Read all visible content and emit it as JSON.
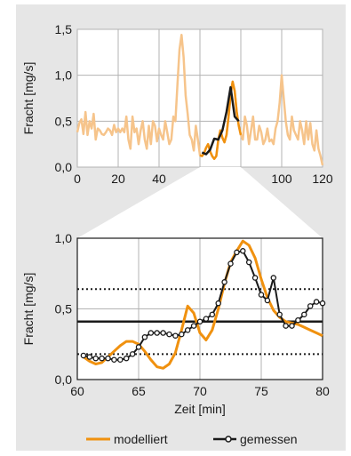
{
  "colors": {
    "panel_bg": "#e6e6e6",
    "plot_bg": "#ffffff",
    "grid": "#b3b3b3",
    "modelled": "#f0910f",
    "modelled_faded": "#f6c48b",
    "measured": "#1a1a1a",
    "highlight_window": "#ffffff"
  },
  "legend": {
    "modelled_label": "modelliert",
    "measured_label": "gemessen"
  },
  "chart_data": [
    {
      "id": "overview",
      "type": "line",
      "ylabel": "Fracht [mg/s]",
      "xlabel": "",
      "xlim": [
        0,
        120
      ],
      "ylim": [
        0,
        1.5
      ],
      "xticks": [
        0,
        20,
        40,
        60,
        80,
        100,
        120
      ],
      "xtick_labels": [
        "0",
        "20",
        "40",
        "60",
        "80",
        "100",
        "120"
      ],
      "yticks": [
        0,
        0.5,
        1.0,
        1.5
      ],
      "ytick_labels": [
        "0,0",
        "0,5",
        "1,0",
        "1,5"
      ],
      "highlight_range": [
        60,
        80
      ],
      "grid": true,
      "series": [
        {
          "name": "modelliert",
          "x": [
            0,
            1,
            2,
            3,
            4,
            5,
            6,
            7,
            8,
            9,
            10,
            11,
            12,
            13,
            14,
            15,
            16,
            17,
            18,
            19,
            20,
            21,
            22,
            23,
            24,
            25,
            26,
            27,
            28,
            29,
            30,
            31,
            32,
            33,
            34,
            35,
            36,
            37,
            38,
            39,
            40,
            41,
            42,
            43,
            44,
            45,
            46,
            47,
            48,
            49,
            50,
            51,
            52,
            53,
            54,
            55,
            56,
            57,
            58,
            59,
            60,
            61,
            62,
            63,
            64,
            65,
            66,
            67,
            68,
            69,
            70,
            71,
            72,
            73,
            74,
            75,
            76,
            77,
            78,
            79,
            80,
            81,
            82,
            83,
            84,
            85,
            86,
            87,
            88,
            89,
            90,
            91,
            92,
            93,
            94,
            95,
            96,
            97,
            98,
            99,
            100,
            101,
            102,
            103,
            104,
            105,
            106,
            107,
            108,
            109,
            110,
            111,
            112,
            113,
            114,
            115,
            116,
            117,
            118,
            119,
            120
          ],
          "y": [
            0.38,
            0.48,
            0.52,
            0.36,
            0.6,
            0.35,
            0.5,
            0.42,
            0.58,
            0.3,
            0.42,
            0.4,
            0.36,
            0.35,
            0.38,
            0.42,
            0.4,
            0.35,
            0.46,
            0.38,
            0.42,
            0.38,
            0.42,
            0.38,
            0.55,
            0.3,
            0.2,
            0.55,
            0.38,
            0.42,
            0.25,
            0.4,
            0.5,
            0.3,
            0.2,
            0.45,
            0.25,
            0.5,
            0.45,
            0.28,
            0.42,
            0.35,
            0.3,
            0.5,
            0.38,
            0.25,
            0.3,
            0.55,
            0.5,
            0.9,
            1.28,
            1.44,
            1.2,
            0.78,
            0.58,
            0.35,
            0.3,
            0.18,
            0.45,
            0.3,
            0.13,
            0.12,
            0.15,
            0.21,
            0.25,
            0.17,
            0.12,
            0.09,
            0.12,
            0.3,
            0.4,
            0.32,
            0.27,
            0.35,
            0.55,
            0.79,
            0.93,
            0.83,
            0.6,
            0.45,
            0.35,
            0.3,
            0.55,
            0.45,
            0.25,
            0.4,
            0.55,
            0.3,
            0.3,
            0.45,
            0.38,
            0.25,
            0.3,
            0.42,
            0.28,
            0.3,
            0.25,
            0.42,
            0.5,
            0.7,
            1.0,
            0.75,
            0.5,
            0.35,
            0.3,
            0.55,
            0.4,
            0.35,
            0.3,
            0.5,
            0.4,
            0.25,
            0.5,
            0.3,
            0.48,
            0.25,
            0.18,
            0.4,
            0.2,
            0.12,
            0.02
          ]
        },
        {
          "name": "gemessen",
          "x": [
            61,
            63,
            65,
            67,
            69,
            71,
            73,
            75,
            77,
            79
          ],
          "y": [
            0.16,
            0.14,
            0.19,
            0.31,
            0.3,
            0.4,
            0.6,
            0.87,
            0.55,
            0.5
          ]
        }
      ]
    },
    {
      "id": "detail",
      "type": "line",
      "ylabel": "Fracht [mg/s]",
      "xlabel": "Zeit [min]",
      "xlim": [
        60,
        80
      ],
      "ylim": [
        0,
        1.0
      ],
      "xticks": [
        60,
        65,
        70,
        75,
        80
      ],
      "xtick_labels": [
        "60",
        "65",
        "70",
        "75",
        "80"
      ],
      "yticks": [
        0,
        0.5,
        1.0
      ],
      "ytick_labels": [
        "0,0",
        "0,5",
        "1,0"
      ],
      "grid": true,
      "reference_lines": [
        {
          "y": 0.41,
          "style": "solid"
        },
        {
          "y": 0.64,
          "style": "dotted"
        },
        {
          "y": 0.18,
          "style": "dotted"
        }
      ],
      "series": [
        {
          "name": "modelliert",
          "x": [
            60.5,
            61,
            61.5,
            62,
            62.5,
            63,
            63.5,
            64,
            64.5,
            65,
            65.5,
            66,
            66.5,
            67,
            67.5,
            68,
            68.5,
            69,
            69.5,
            70,
            70.5,
            71,
            71.5,
            72,
            72.5,
            73,
            73.5,
            74,
            74.5,
            75,
            75.5,
            76,
            76.5,
            77,
            77.5,
            78,
            78.5,
            79,
            79.5,
            80
          ],
          "y": [
            0.16,
            0.13,
            0.11,
            0.12,
            0.16,
            0.2,
            0.24,
            0.27,
            0.27,
            0.25,
            0.2,
            0.14,
            0.09,
            0.08,
            0.11,
            0.19,
            0.35,
            0.52,
            0.47,
            0.33,
            0.28,
            0.35,
            0.5,
            0.68,
            0.83,
            0.91,
            0.98,
            0.95,
            0.86,
            0.71,
            0.58,
            0.49,
            0.44,
            0.41,
            0.4,
            0.39,
            0.37,
            0.35,
            0.33,
            0.31
          ]
        },
        {
          "name": "gemessen",
          "x": [
            60.5,
            61,
            61.5,
            62,
            62.5,
            63,
            63.5,
            64,
            64.5,
            65,
            65.5,
            66,
            66.5,
            67,
            67.5,
            68,
            68.5,
            69,
            69.5,
            70,
            70.5,
            71,
            71.5,
            72,
            72.5,
            73,
            73.5,
            74,
            74.5,
            75,
            75.5,
            76,
            76.5,
            77,
            77.5,
            78,
            78.5,
            79,
            79.5,
            80
          ],
          "y": [
            0.17,
            0.16,
            0.15,
            0.15,
            0.15,
            0.14,
            0.14,
            0.15,
            0.18,
            0.23,
            0.3,
            0.33,
            0.33,
            0.33,
            0.32,
            0.31,
            0.32,
            0.35,
            0.38,
            0.41,
            0.43,
            0.46,
            0.54,
            0.69,
            0.82,
            0.9,
            0.91,
            0.83,
            0.72,
            0.6,
            0.56,
            0.72,
            0.46,
            0.38,
            0.38,
            0.42,
            0.46,
            0.52,
            0.55,
            0.54
          ]
        }
      ]
    }
  ]
}
